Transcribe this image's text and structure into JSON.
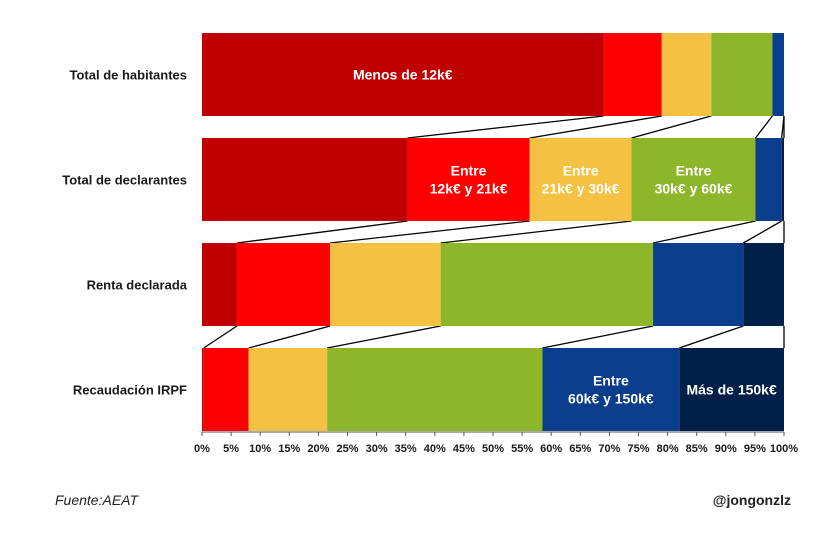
{
  "chart_data": {
    "type": "bar",
    "orientation": "horizontal",
    "stacked": "100%",
    "categories": [
      "Total de habitantes",
      "Total de declarantes",
      "Renta declarada",
      "Recaudación IRPF"
    ],
    "series": [
      {
        "name": "Menos de 12k€",
        "color": "#c00000",
        "values": [
          69,
          35.3,
          6,
          0.3
        ]
      },
      {
        "name": "Entre 12k€ y 21k€",
        "color": "#ff0000",
        "values": [
          10,
          21,
          16,
          7.7
        ]
      },
      {
        "name": "Entre 21k€ y 30k€",
        "color": "#f4c142",
        "values": [
          8.5,
          17.5,
          19,
          13.5
        ]
      },
      {
        "name": "Entre 30k€ y 60k€",
        "color": "#8db62b",
        "values": [
          10.5,
          21.3,
          36.5,
          37
        ]
      },
      {
        "name": "Entre 60k€ y 150k€",
        "color": "#0a3d8c",
        "values": [
          2,
          4.5,
          15.5,
          23.5
        ]
      },
      {
        "name": "Más de 150k€",
        "color": "#00204a",
        "values": [
          0,
          0.4,
          7,
          18
        ]
      }
    ],
    "segment_labels": [
      {
        "row": 0,
        "series": 0,
        "lines": [
          "Menos de 12k€"
        ]
      },
      {
        "row": 1,
        "series": 1,
        "lines": [
          "Entre",
          "12k€ y 21k€"
        ]
      },
      {
        "row": 1,
        "series": 2,
        "lines": [
          "Entre",
          "21k€ y 30k€"
        ]
      },
      {
        "row": 1,
        "series": 3,
        "lines": [
          "Entre",
          "30k€ y 60k€"
        ]
      },
      {
        "row": 3,
        "series": 4,
        "lines": [
          "Entre",
          "60k€ y 150k€"
        ]
      },
      {
        "row": 3,
        "series": 5,
        "lines": [
          "Más de 150k€"
        ]
      }
    ],
    "x_ticks": [
      "0%",
      "5%",
      "10%",
      "15%",
      "20%",
      "25%",
      "30%",
      "35%",
      "40%",
      "45%",
      "50%",
      "55%",
      "60%",
      "65%",
      "70%",
      "75%",
      "80%",
      "85%",
      "90%",
      "95%",
      "100%"
    ],
    "xlim": [
      0,
      100
    ],
    "connector_lines": true,
    "legend": "none"
  },
  "footer": {
    "source": "Fuente:AEAT",
    "credit": "@jongonzlz"
  }
}
